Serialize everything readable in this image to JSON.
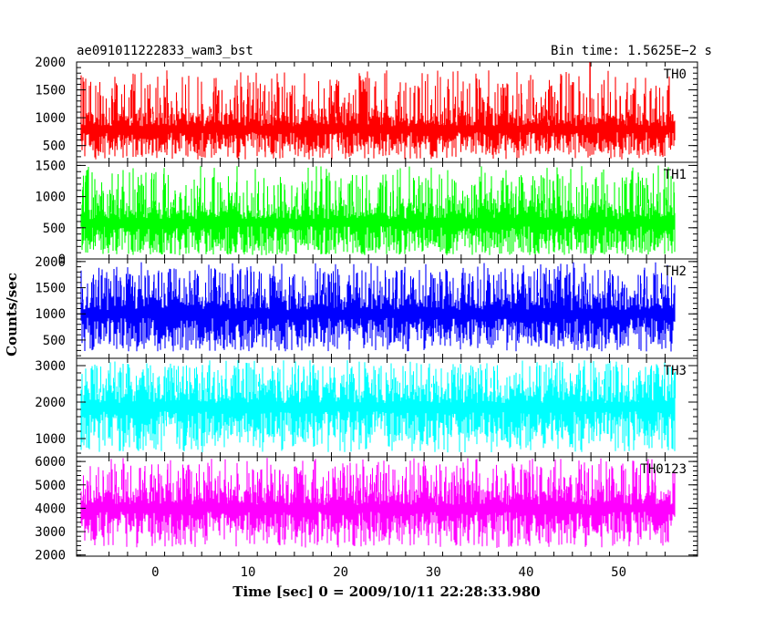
{
  "title_left": "ae091011222833_wam3_bst",
  "title_right": "Bin time: 1.5625E−2 s",
  "xlabel": "Time [sec] 0 = 2009/10/11 22:28:33.980",
  "ylabel": "Counts/sec",
  "chart_data": {
    "type": "line",
    "xlim": [
      -8.5,
      58.5
    ],
    "x_range_data": [
      -8,
      56
    ],
    "bin_time_s": 0.015625,
    "x_ticks": [
      0,
      10,
      20,
      30,
      40,
      50
    ],
    "x_tick_labels": [
      "0",
      "10",
      "20",
      "30",
      "40",
      "50"
    ],
    "panels": [
      {
        "name": "TH0",
        "color": "#ff0000",
        "ylim": [
          200,
          2000
        ],
        "y_ticks": [
          500,
          1000,
          1500,
          2000
        ],
        "y_tick_labels": [
          "500",
          "1000",
          "1500",
          "2000"
        ],
        "typical_range": [
          380,
          1100
        ],
        "spike_range": [
          250,
          1850
        ],
        "peak": {
          "x": 46.9,
          "y": 2000
        }
      },
      {
        "name": "TH1",
        "color": "#00ff00",
        "ylim": [
          0,
          1550
        ],
        "y_ticks": [
          0,
          500,
          1000,
          1500
        ],
        "y_tick_labels": [
          "0",
          "500",
          "1000",
          "1500"
        ],
        "typical_range": [
          150,
          900
        ],
        "spike_range": [
          60,
          1500
        ],
        "peak": null
      },
      {
        "name": "TH2",
        "color": "#0000ff",
        "ylim": [
          150,
          2050
        ],
        "y_ticks": [
          500,
          1000,
          1500,
          2000
        ],
        "y_tick_labels": [
          "500",
          "1000",
          "1500",
          "2000"
        ],
        "typical_range": [
          450,
          1400
        ],
        "spike_range": [
          280,
          2000
        ],
        "peak": null
      },
      {
        "name": "TH3",
        "color": "#00ffff",
        "ylim": [
          500,
          3200
        ],
        "y_ticks": [
          1000,
          2000,
          3000
        ],
        "y_tick_labels": [
          "1000",
          "2000",
          "3000"
        ],
        "typical_range": [
          1000,
          2500
        ],
        "spike_range": [
          620,
          3150
        ],
        "peak": null
      },
      {
        "name": "TH0123",
        "color": "#ff00ff",
        "ylim": [
          1950,
          6200
        ],
        "y_ticks": [
          2000,
          3000,
          4000,
          5000,
          6000
        ],
        "y_tick_labels": [
          "2000",
          "3000",
          "4000",
          "5000",
          "6000"
        ],
        "typical_range": [
          2900,
          4800
        ],
        "spike_range": [
          2300,
          6150
        ],
        "peak": null
      }
    ]
  }
}
